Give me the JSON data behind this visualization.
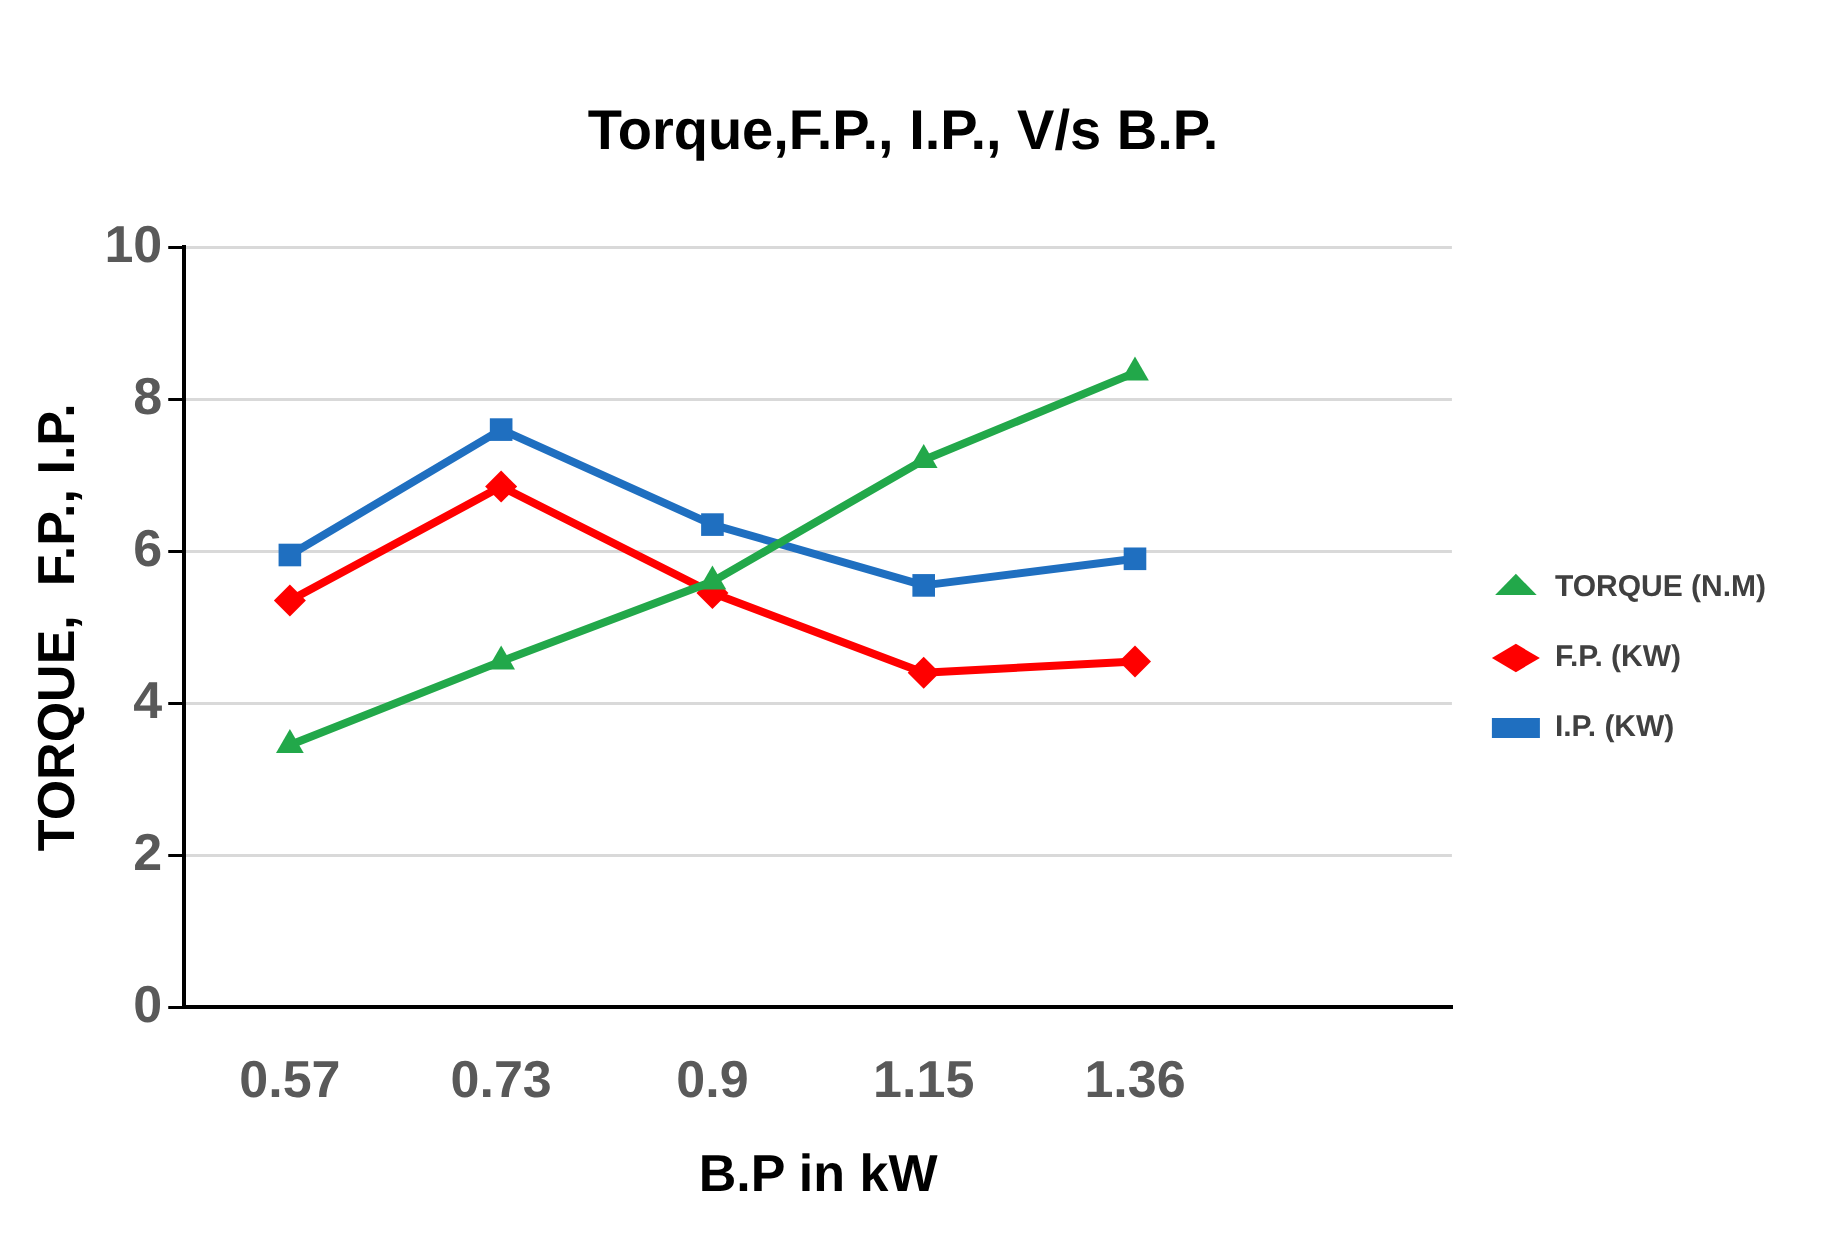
{
  "chart_data": {
    "type": "line",
    "title": "Torque,F.P., I.P., V/s B.P.",
    "xlabel": "B.P in kW",
    "ylabel": "TORQUE,  F.P., I.P.",
    "categories": [
      "0.57",
      "0.73",
      "0.9",
      "1.15",
      "1.36",
      null
    ],
    "ylim": [
      0,
      10
    ],
    "yticks": [
      0,
      2,
      4,
      6,
      8,
      10
    ],
    "grid": "y",
    "legend": "right",
    "series": [
      {
        "name": "TORQUE (N.M)",
        "color": "#22a84a",
        "marker": "triangle",
        "values": [
          3.45,
          4.55,
          5.6,
          7.2,
          8.35,
          null
        ]
      },
      {
        "name": "F.P. (KW)",
        "color": "#ff0000",
        "marker": "diamond",
        "values": [
          5.35,
          6.85,
          5.45,
          4.4,
          4.55,
          null
        ]
      },
      {
        "name": "I.P. (KW)",
        "color": "#1f6fc0",
        "marker": "square",
        "values": [
          5.95,
          7.6,
          6.35,
          5.55,
          5.9,
          null
        ]
      }
    ]
  }
}
